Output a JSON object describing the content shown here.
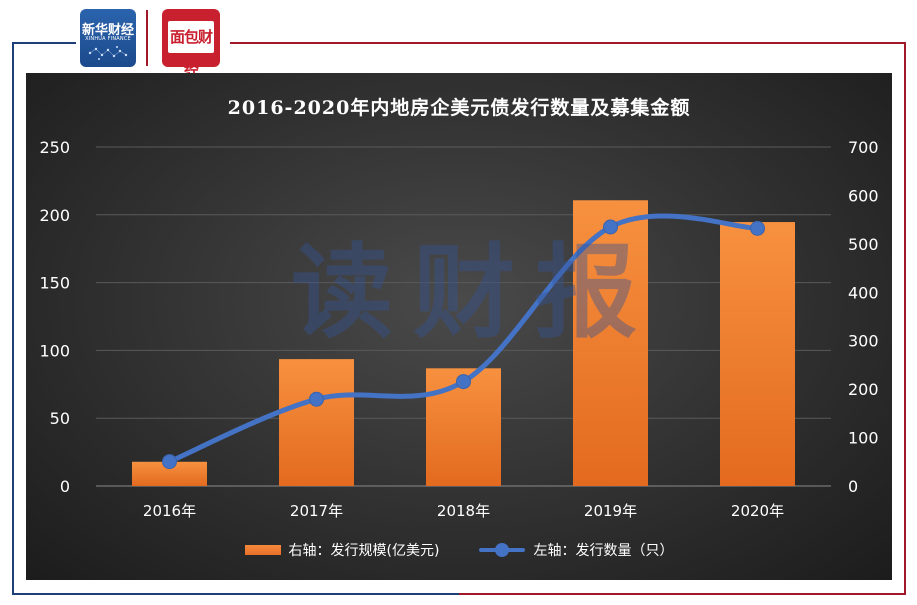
{
  "logos": {
    "left_brand": "新华财经",
    "left_sub": "XINHUA FINANCE",
    "right_brand": "面包财经"
  },
  "watermark": "读财报",
  "chart_data": {
    "type": "bar",
    "title": "2016-2020年内地房企美元债发行数量及募集金额",
    "categories": [
      "2016年",
      "2017年",
      "2018年",
      "2019年",
      "2020年"
    ],
    "left_axis": {
      "ticks": [
        "0",
        "50",
        "100",
        "150",
        "200",
        "250"
      ],
      "range": [
        0,
        250
      ]
    },
    "right_axis": {
      "ticks": [
        "0",
        "100",
        "200",
        "300",
        "400",
        "500",
        "600",
        "700"
      ],
      "range": [
        0,
        700
      ]
    },
    "series": [
      {
        "name": "右轴：发行规模(亿美元)",
        "type": "bar",
        "axis": "right",
        "values": [
          50,
          262,
          243,
          590,
          545
        ],
        "color": "#ed7d31"
      },
      {
        "name": "左轴：发行数量（只）",
        "type": "line",
        "axis": "left",
        "smooth": true,
        "values": [
          18,
          64,
          77,
          191,
          190
        ],
        "color": "#4472c4"
      }
    ],
    "grid": true,
    "legend": "bottom"
  }
}
